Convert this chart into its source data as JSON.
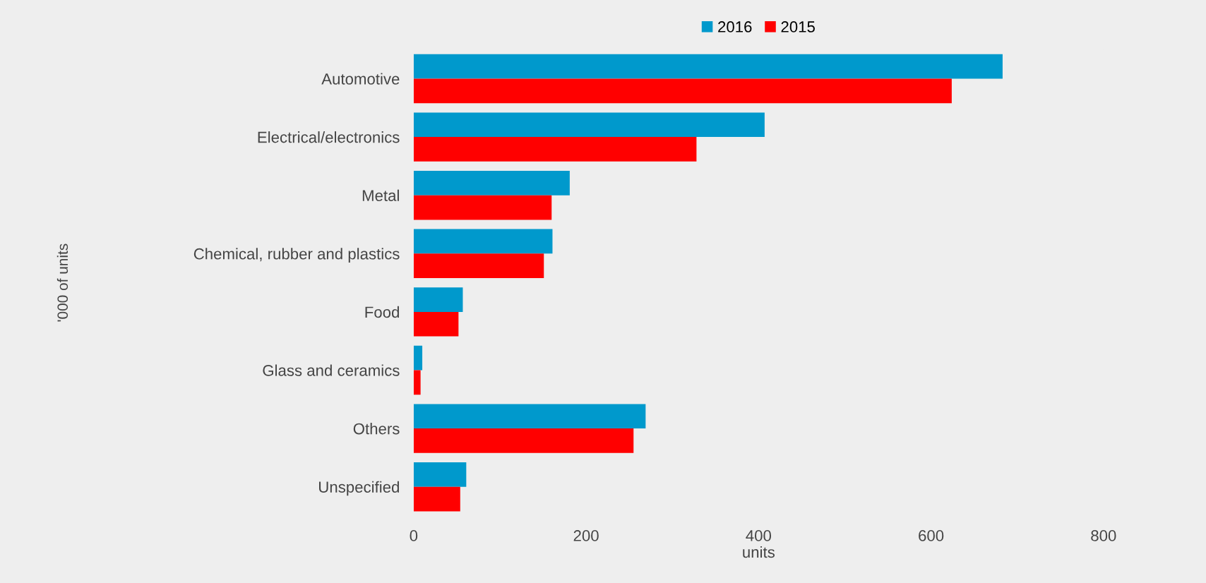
{
  "chart_data": {
    "type": "bar",
    "orientation": "horizontal",
    "xlabel": "units",
    "annotations": [
      "'000 of units"
    ],
    "categories": [
      "Automotive",
      "Electrical/electronics",
      "Metal",
      "Chemical, rubber and plastics",
      "Food",
      "Glass and ceramics",
      "Others",
      "Unspecified"
    ],
    "series": [
      {
        "name": "2016",
        "color": "#0099cc",
        "values": [
          683,
          407,
          181,
          161,
          57,
          10,
          269,
          61
        ]
      },
      {
        "name": "2015",
        "color": "#ff0000",
        "values": [
          624,
          328,
          160,
          151,
          52,
          8,
          255,
          54
        ]
      }
    ],
    "xlim": [
      0,
      800
    ],
    "xticks": [
      0,
      200,
      400,
      600,
      800
    ],
    "grid": false,
    "legend": "top"
  }
}
